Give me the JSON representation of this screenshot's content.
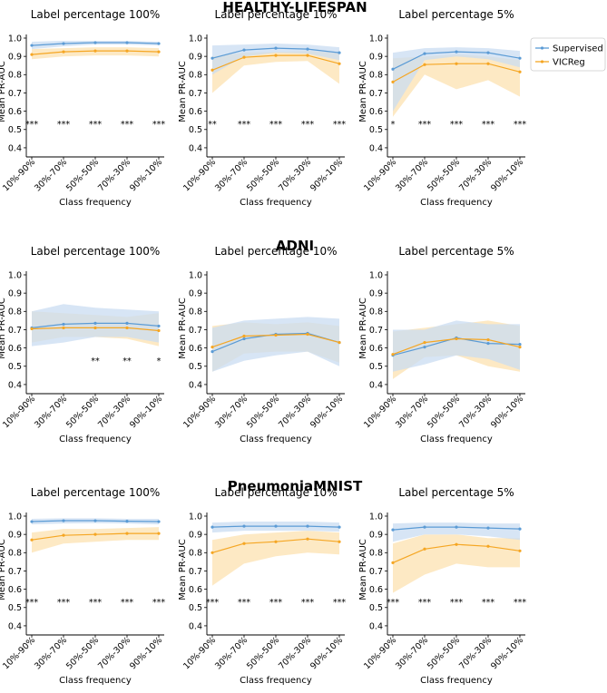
{
  "chart_data": {
    "type": "line",
    "x_ticks": [
      "10%-90%",
      "30%-70%",
      "50%-50%",
      "70%-30%",
      "90%-10%"
    ],
    "xlabel": "Class frequency",
    "ylabel": "Mean PR-AUC",
    "ylim": [
      0.35,
      1.0
    ],
    "y_ticks": [
      "0.4",
      "0.5",
      "0.6",
      "0.7",
      "0.8",
      "0.9",
      "1.0"
    ],
    "grid": false,
    "legend": {
      "placement": "top-right",
      "entries": [
        {
          "name": "Supervised",
          "color": "#5b9bd5"
        },
        {
          "name": "VICReg",
          "color": "#f5a623"
        }
      ]
    },
    "colors": {
      "supervised": "#5b9bd5",
      "vicreg": "#f5a623",
      "supervised_band": "#c9dcf1",
      "vicreg_band": "#fde4b5"
    },
    "rows": [
      {
        "title": "HEALTHY-LIFESPAN",
        "panels": [
          {
            "title": "Label percentage 100%",
            "supervised": {
              "mean": [
                0.96,
                0.97,
                0.975,
                0.975,
                0.97
              ],
              "low": [
                0.94,
                0.955,
                0.965,
                0.965,
                0.96
              ],
              "high": [
                0.98,
                0.985,
                0.985,
                0.985,
                0.98
              ]
            },
            "vicreg": {
              "mean": [
                0.91,
                0.925,
                0.93,
                0.93,
                0.925
              ],
              "low": [
                0.885,
                0.9,
                0.905,
                0.905,
                0.9
              ],
              "high": [
                0.94,
                0.945,
                0.95,
                0.95,
                0.945
              ]
            },
            "significance": [
              "***",
              "***",
              "***",
              "***",
              "***"
            ]
          },
          {
            "title": "Label percentage 10%",
            "supervised": {
              "mean": [
                0.89,
                0.935,
                0.945,
                0.94,
                0.92
              ],
              "low": [
                0.8,
                0.9,
                0.92,
                0.915,
                0.88
              ],
              "high": [
                0.96,
                0.965,
                0.97,
                0.965,
                0.95
              ]
            },
            "vicreg": {
              "mean": [
                0.825,
                0.895,
                0.905,
                0.905,
                0.86
              ],
              "low": [
                0.7,
                0.85,
                0.87,
                0.875,
                0.75
              ],
              "high": [
                0.9,
                0.92,
                0.925,
                0.93,
                0.92
              ]
            },
            "significance": [
              "**",
              "***",
              "***",
              "***",
              "***"
            ]
          },
          {
            "title": "Label percentage 5%",
            "supervised": {
              "mean": [
                0.83,
                0.915,
                0.925,
                0.92,
                0.89
              ],
              "low": [
                0.6,
                0.88,
                0.9,
                0.885,
                0.84
              ],
              "high": [
                0.92,
                0.945,
                0.95,
                0.945,
                0.93
              ]
            },
            "vicreg": {
              "mean": [
                0.76,
                0.855,
                0.86,
                0.86,
                0.815
              ],
              "low": [
                0.57,
                0.8,
                0.72,
                0.77,
                0.68
              ],
              "high": [
                0.89,
                0.9,
                0.91,
                0.9,
                0.88
              ]
            },
            "significance": [
              "*",
              "***",
              "***",
              "***",
              "***"
            ]
          }
        ]
      },
      {
        "title": "ADNI",
        "panels": [
          {
            "title": "Label percentage 100%",
            "supervised": {
              "mean": [
                0.71,
                0.73,
                0.735,
                0.735,
                0.72
              ],
              "low": [
                0.61,
                0.63,
                0.66,
                0.66,
                0.63
              ],
              "high": [
                0.8,
                0.84,
                0.82,
                0.81,
                0.8
              ]
            },
            "vicreg": {
              "mean": [
                0.705,
                0.71,
                0.71,
                0.71,
                0.695
              ],
              "low": [
                0.63,
                0.66,
                0.66,
                0.65,
                0.61
              ],
              "high": [
                0.8,
                0.79,
                0.78,
                0.77,
                0.79
              ]
            },
            "significance": [
              "",
              "",
              "**",
              "**",
              "*"
            ]
          },
          {
            "title": "Label percentage 10%",
            "supervised": {
              "mean": [
                0.58,
                0.65,
                0.675,
                0.68,
                0.63
              ],
              "low": [
                0.47,
                0.53,
                0.56,
                0.58,
                0.5
              ],
              "high": [
                0.71,
                0.75,
                0.76,
                0.77,
                0.76
              ]
            },
            "vicreg": {
              "mean": [
                0.605,
                0.665,
                0.67,
                0.675,
                0.63
              ],
              "low": [
                0.47,
                0.57,
                0.58,
                0.58,
                0.52
              ],
              "high": [
                0.72,
                0.74,
                0.73,
                0.74,
                0.72
              ]
            },
            "significance": [
              "",
              "",
              "",
              "",
              ""
            ]
          },
          {
            "title": "Label percentage 5%",
            "supervised": {
              "mean": [
                0.56,
                0.605,
                0.655,
                0.625,
                0.62
              ],
              "low": [
                0.47,
                0.51,
                0.56,
                0.54,
                0.48
              ],
              "high": [
                0.7,
                0.7,
                0.75,
                0.73,
                0.73
              ]
            },
            "vicreg": {
              "mean": [
                0.565,
                0.63,
                0.65,
                0.645,
                0.605
              ],
              "low": [
                0.43,
                0.55,
                0.56,
                0.5,
                0.47
              ],
              "high": [
                0.69,
                0.71,
                0.73,
                0.75,
                0.72
              ]
            },
            "significance": [
              "",
              "",
              "",
              "",
              ""
            ]
          }
        ]
      },
      {
        "title": "PneumoniaMNIST",
        "panels": [
          {
            "title": "Label percentage 100%",
            "supervised": {
              "mean": [
                0.97,
                0.975,
                0.975,
                0.972,
                0.97
              ],
              "low": [
                0.955,
                0.96,
                0.962,
                0.96,
                0.955
              ],
              "high": [
                0.985,
                0.988,
                0.988,
                0.985,
                0.985
              ]
            },
            "vicreg": {
              "mean": [
                0.87,
                0.895,
                0.9,
                0.905,
                0.905
              ],
              "low": [
                0.8,
                0.85,
                0.86,
                0.87,
                0.87
              ],
              "high": [
                0.91,
                0.93,
                0.93,
                0.935,
                0.94
              ]
            },
            "significance": [
              "***",
              "***",
              "***",
              "***",
              "***"
            ]
          },
          {
            "title": "Label percentage 10%",
            "supervised": {
              "mean": [
                0.94,
                0.945,
                0.945,
                0.945,
                0.94
              ],
              "low": [
                0.91,
                0.92,
                0.92,
                0.92,
                0.915
              ],
              "high": [
                0.965,
                0.97,
                0.97,
                0.97,
                0.965
              ]
            },
            "vicreg": {
              "mean": [
                0.8,
                0.85,
                0.86,
                0.875,
                0.86
              ],
              "low": [
                0.62,
                0.74,
                0.78,
                0.8,
                0.79
              ],
              "high": [
                0.87,
                0.9,
                0.91,
                0.92,
                0.91
              ]
            },
            "significance": [
              "***",
              "***",
              "***",
              "***",
              "***"
            ]
          },
          {
            "title": "Label percentage 5%",
            "supervised": {
              "mean": [
                0.925,
                0.94,
                0.94,
                0.935,
                0.93
              ],
              "low": [
                0.86,
                0.9,
                0.9,
                0.89,
                0.87
              ],
              "high": [
                0.96,
                0.965,
                0.965,
                0.96,
                0.96
              ]
            },
            "vicreg": {
              "mean": [
                0.745,
                0.82,
                0.845,
                0.835,
                0.81
              ],
              "low": [
                0.58,
                0.68,
                0.74,
                0.72,
                0.72
              ],
              "high": [
                0.85,
                0.9,
                0.9,
                0.88,
                0.88
              ]
            },
            "significance": [
              "***",
              "***",
              "***",
              "***",
              "***"
            ]
          }
        ]
      }
    ]
  }
}
